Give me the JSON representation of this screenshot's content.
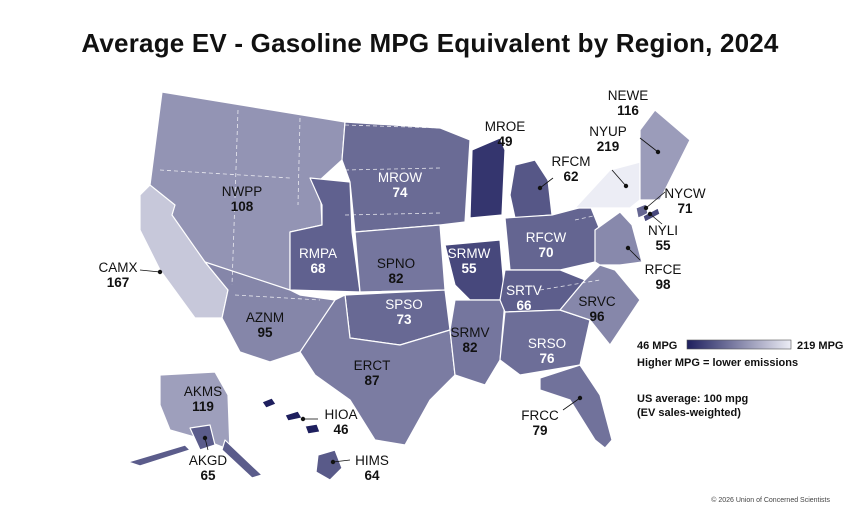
{
  "title": "Average EV - Gasoline MPG Equivalent by Region, 2024",
  "legend": {
    "min_label": "46 MPG",
    "max_label": "219 MPG",
    "min_value": 46,
    "max_value": 219,
    "low_color": "#1e1f5e",
    "high_color": "#ecedf5",
    "caption": "Higher MPG = lower emissions"
  },
  "note": {
    "line1": "US average: 100 mpg",
    "line2": "(EV sales-weighted)"
  },
  "copyright": "© 2026 Union of Concerned Scientists",
  "regions": [
    {
      "code": "NWPP",
      "value": 108
    },
    {
      "code": "CAMX",
      "value": 167
    },
    {
      "code": "AZNM",
      "value": 95
    },
    {
      "code": "RMPA",
      "value": 68
    },
    {
      "code": "MROW",
      "value": 74
    },
    {
      "code": "SPNO",
      "value": 82
    },
    {
      "code": "SPSO",
      "value": 73
    },
    {
      "code": "ERCT",
      "value": 87
    },
    {
      "code": "MROE",
      "value": 49
    },
    {
      "code": "SRMW",
      "value": 55
    },
    {
      "code": "SRMV",
      "value": 82
    },
    {
      "code": "RFCM",
      "value": 62
    },
    {
      "code": "RFCW",
      "value": 70
    },
    {
      "code": "SRTV",
      "value": 66
    },
    {
      "code": "SRSO",
      "value": 76
    },
    {
      "code": "FRCC",
      "value": 79
    },
    {
      "code": "SRVC",
      "value": 96
    },
    {
      "code": "RFCE",
      "value": 98
    },
    {
      "code": "NYUP",
      "value": 219
    },
    {
      "code": "NEWE",
      "value": 116
    },
    {
      "code": "NYCW",
      "value": 71
    },
    {
      "code": "NYLI",
      "value": 55
    },
    {
      "code": "AKMS",
      "value": 119
    },
    {
      "code": "AKGD",
      "value": 65
    },
    {
      "code": "HIOA",
      "value": 46
    },
    {
      "code": "HIMS",
      "value": 64
    }
  ]
}
